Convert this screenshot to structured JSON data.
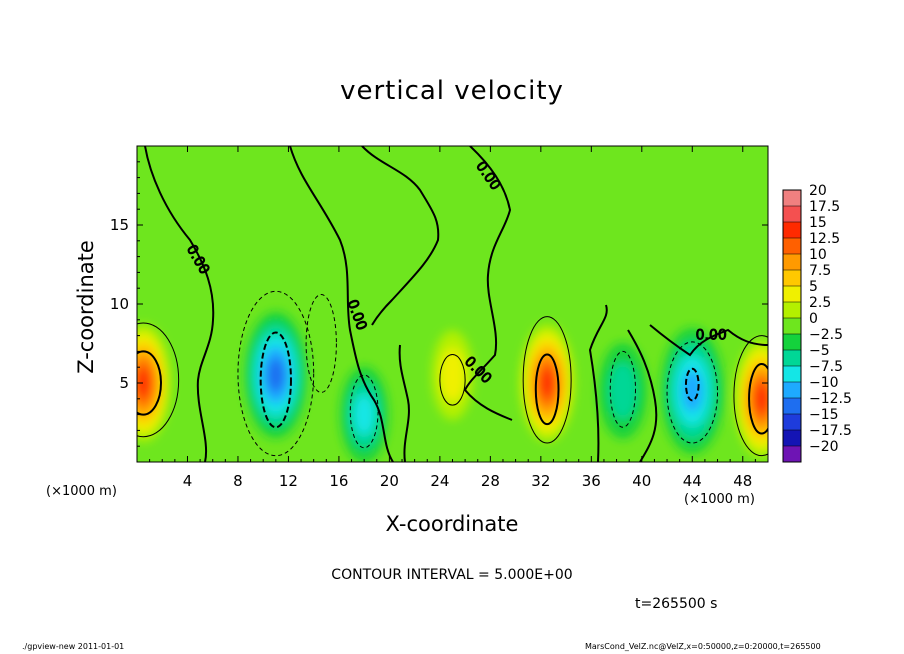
{
  "title": "vertical velocity",
  "contour_interval": "CONTOUR INTERVAL = 5.000E+00",
  "time": "t=265500 s",
  "x_unit": "(×1000 m)",
  "footer": {
    "left": "./gpview-new 2011-01-01",
    "right": "MarsCond_VelZ.nc@VelZ,x=0:50000,z=0:20000,t=265500"
  },
  "chart_data": {
    "type": "heatmap",
    "title": "vertical velocity",
    "xlabel": "X-coordinate",
    "ylabel": "Z-coordinate",
    "x_unit": "(×1000 m)",
    "xlim": [
      0,
      50
    ],
    "ylim": [
      0,
      20
    ],
    "x_ticks": [
      4,
      8,
      12,
      16,
      20,
      24,
      28,
      32,
      36,
      40,
      44,
      48
    ],
    "y_ticks": [
      5,
      10,
      15
    ],
    "contour_labels": [
      "0.00",
      "0.00",
      "0.00",
      "0.00",
      "0.00"
    ],
    "colorbar": {
      "levels": [
        20,
        17.5,
        15,
        12.5,
        10,
        7.5,
        5,
        2.5,
        0,
        -2.5,
        -5,
        -7.5,
        -10,
        -12.5,
        -15,
        -17.5,
        -20
      ],
      "colors": [
        "#f08080",
        "#f45050",
        "#ff2a00",
        "#ff6000",
        "#ff9a00",
        "#ffc800",
        "#f0f000",
        "#b4f000",
        "#6ee61e",
        "#14d23c",
        "#00d796",
        "#14e6e6",
        "#1eaaff",
        "#1e6ef0",
        "#1e3cdc",
        "#1414b4",
        "#6e14b4"
      ]
    },
    "features": [
      {
        "kind": "updraft",
        "x": 0.5,
        "z": 5,
        "peak": 15
      },
      {
        "kind": "downdraft",
        "x": 11,
        "z": 5.5,
        "peak": -12.5
      },
      {
        "kind": "downdraft",
        "x": 18,
        "z": 3,
        "peak": -7.5
      },
      {
        "kind": "updraft",
        "x": 25,
        "z": 5.5,
        "peak": 5
      },
      {
        "kind": "updraft",
        "x": 32.5,
        "z": 5,
        "peak": 15
      },
      {
        "kind": "downdraft",
        "x": 38.5,
        "z": 4.5,
        "peak": -5
      },
      {
        "kind": "downdraft",
        "x": 44,
        "z": 4.5,
        "peak": -10
      },
      {
        "kind": "updraft",
        "x": 49.5,
        "z": 4,
        "peak": 15
      }
    ]
  }
}
